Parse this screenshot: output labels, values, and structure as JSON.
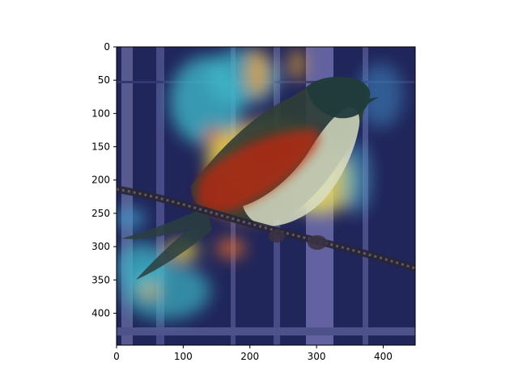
{
  "figure": {
    "axes": {
      "x_ticks": [
        0,
        100,
        200,
        300,
        400
      ],
      "y_ticks": [
        0,
        50,
        100,
        150,
        200,
        250,
        300,
        350,
        400
      ],
      "x_range": [
        0,
        448
      ],
      "y_range": [
        448,
        0
      ],
      "y_inverted": true
    },
    "image": {
      "subject": "bird perched on rope",
      "overlay": "attention heatmap",
      "colormap": "jet"
    },
    "colors": {
      "background_base": "#20255a",
      "fence_vertical": "#6f6fa6",
      "rope": "#403b4a",
      "bird_dark": "#2b3a33",
      "heat_red": "#c81d0c",
      "heat_yellow": "#f3e84a",
      "heat_cyan": "#4fd0c7"
    }
  }
}
